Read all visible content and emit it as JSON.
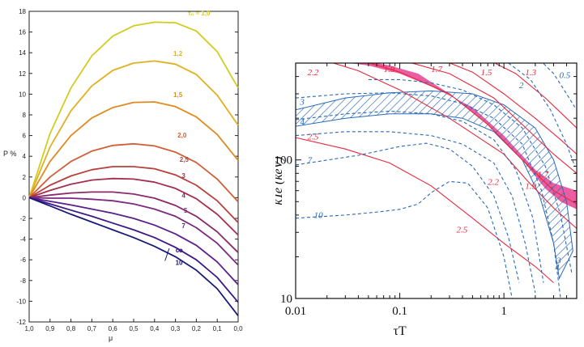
{
  "chart_data": [
    {
      "type": "line",
      "title": "",
      "xlabel": "μ",
      "ylabel": "P %",
      "xlim": [
        1.0,
        0.0
      ],
      "ylim": [
        -12,
        18
      ],
      "x_ticks": [
        "1,0",
        "0,9",
        "0,8",
        "0,7",
        "0,6",
        "0,5",
        "0,4",
        "0,3",
        "0,2",
        "0,1",
        "0,0"
      ],
      "y_ticks": [
        "18",
        "16",
        "14",
        "12",
        "10",
        "8",
        "6",
        "4",
        "2",
        "0",
        "-2",
        "-4",
        "-6",
        "-8",
        "-10",
        "-12"
      ],
      "x": [
        1.0,
        0.9,
        0.8,
        0.7,
        0.6,
        0.5,
        0.4,
        0.3,
        0.2,
        0.1,
        0.0
      ],
      "series": [
        {
          "name": "τ₀ = 1,0",
          "color": "#d2cc1e",
          "values": [
            0,
            6.2,
            10.6,
            13.7,
            15.6,
            16.6,
            16.95,
            16.9,
            16.1,
            14.1,
            10.6
          ]
        },
        {
          "name": "1,2",
          "color": "#e0b020",
          "values": [
            0,
            4.9,
            8.4,
            10.8,
            12.3,
            13.0,
            13.2,
            12.9,
            11.9,
            9.9,
            7.0
          ]
        },
        {
          "name": "1,5",
          "color": "#e08a1e",
          "values": [
            0,
            3.5,
            6.0,
            7.7,
            8.7,
            9.2,
            9.25,
            8.8,
            7.8,
            6.1,
            3.6
          ]
        },
        {
          "name": "2,0",
          "color": "#cf6038",
          "values": [
            0,
            2.0,
            3.5,
            4.5,
            5.05,
            5.2,
            5.0,
            4.4,
            3.4,
            1.8,
            -0.4
          ]
        },
        {
          "name": "2,5",
          "color": "#b8403c",
          "values": [
            0,
            1.2,
            2.1,
            2.7,
            3.0,
            3.0,
            2.8,
            2.2,
            1.2,
            -0.3,
            -2.4
          ]
        },
        {
          "name": "3",
          "color": "#a42e4e",
          "values": [
            0,
            0.7,
            1.3,
            1.7,
            1.85,
            1.8,
            1.5,
            0.9,
            -0.1,
            -1.6,
            -3.6
          ]
        },
        {
          "name": "4",
          "color": "#8a2a6a",
          "values": [
            0,
            0.25,
            0.45,
            0.55,
            0.55,
            0.35,
            -0.05,
            -0.75,
            -1.8,
            -3.3,
            -5.3
          ]
        },
        {
          "name": "5",
          "color": "#7a2a80",
          "values": [
            0,
            -0.05,
            -0.05,
            -0.15,
            -0.3,
            -0.6,
            -1.1,
            -1.8,
            -2.9,
            -4.4,
            -6.5
          ]
        },
        {
          "name": "7",
          "color": "#5a1f8a",
          "values": [
            0,
            -0.35,
            -0.7,
            -1.1,
            -1.5,
            -2.0,
            -2.65,
            -3.5,
            -4.6,
            -6.2,
            -8.4
          ]
        },
        {
          "name": "∞",
          "color": "#3a1a86",
          "values": [
            0,
            -0.6,
            -1.2,
            -1.8,
            -2.45,
            -3.1,
            -3.85,
            -4.8,
            -6.0,
            -7.7,
            -10.1
          ]
        },
        {
          "name": "10",
          "color": "#1a1a78",
          "values": [
            0,
            -0.8,
            -1.6,
            -2.35,
            -3.1,
            -3.85,
            -4.7,
            -5.7,
            -7.0,
            -8.8,
            -11.4
          ]
        }
      ]
    },
    {
      "type": "line",
      "title": "",
      "xlabel": "τT",
      "ylabel": "kTe (keV)",
      "xscale": "log",
      "yscale": "log",
      "xlim": [
        0.01,
        5
      ],
      "ylim": [
        10,
        500
      ],
      "x_ticks": [
        "0.01",
        "0.1",
        "1"
      ],
      "y_ticks": [
        "10",
        "100"
      ],
      "series": [
        {
          "name": "2.2",
          "style": "solid",
          "color": "#e8283c",
          "points": [
            [
              0.018,
              530
            ],
            [
              0.04,
              440
            ],
            [
              0.1,
              320
            ],
            [
              0.3,
              200
            ],
            [
              1,
              110
            ],
            [
              1.7,
              70
            ],
            [
              3,
              45
            ],
            [
              5,
              32
            ]
          ]
        },
        {
          "name": "2.5",
          "style": "solid",
          "color": "#e8283c",
          "points": [
            [
              0.01,
              145
            ],
            [
              0.03,
              120
            ],
            [
              0.08,
              95
            ],
            [
              0.2,
              65
            ],
            [
              0.5,
              38
            ],
            [
              1,
              25
            ],
            [
              2,
              17
            ],
            [
              3,
              13
            ]
          ]
        },
        {
          "name": "1.9",
          "style": "solid",
          "color": "#e8283c",
          "points": [
            [
              0.04,
              530
            ],
            [
              0.1,
              430
            ],
            [
              0.3,
              300
            ],
            [
              0.7,
              180
            ],
            [
              1.5,
              100
            ],
            [
              3,
              60
            ],
            [
              5,
              48
            ]
          ]
        },
        {
          "name": "1.7",
          "style": "solid",
          "color": "#e8283c",
          "points": [
            [
              0.1,
              530
            ],
            [
              0.3,
              420
            ],
            [
              0.8,
              280
            ],
            [
              1.5,
              180
            ],
            [
              3,
              110
            ],
            [
              5,
              80
            ]
          ]
        },
        {
          "name": "1.5",
          "style": "solid",
          "color": "#e8283c",
          "points": [
            [
              0.25,
              530
            ],
            [
              0.5,
              430
            ],
            [
              1,
              300
            ],
            [
              2,
              200
            ],
            [
              3.5,
              140
            ],
            [
              5,
              110
            ]
          ]
        },
        {
          "name": "1.3",
          "style": "solid",
          "color": "#e8283c",
          "points": [
            [
              0.7,
              530
            ],
            [
              1.3,
              420
            ],
            [
              2.5,
              280
            ],
            [
              4,
              200
            ],
            [
              5,
              170
            ]
          ]
        },
        {
          "name": "0.5",
          "style": "dashed",
          "color": "#2a6ab8",
          "points": [
            [
              2.2,
              530
            ],
            [
              3,
              420
            ],
            [
              4,
              300
            ],
            [
              4.8,
              240
            ]
          ]
        },
        {
          "name": "1",
          "style": "dashed",
          "color": "#2a6ab8",
          "points": [
            [
              1.0,
              530
            ],
            [
              1.8,
              380
            ],
            [
              2.8,
              230
            ],
            [
              4,
              130
            ],
            [
              4.8,
              90
            ]
          ]
        },
        {
          "name": "2",
          "style": "dashed",
          "color": "#2a6ab8",
          "points": [
            [
              0.05,
              380
            ],
            [
              0.1,
              380
            ],
            [
              0.2,
              360
            ],
            [
              0.4,
              320
            ],
            [
              0.8,
              250
            ],
            [
              1.5,
              170
            ],
            [
              2.5,
              90
            ],
            [
              3.5,
              40
            ],
            [
              4.5,
              15
            ]
          ]
        },
        {
          "name": "3",
          "style": "dashed",
          "color": "#2a6ab8",
          "points": [
            [
              0.01,
              280
            ],
            [
              0.03,
              300
            ],
            [
              0.08,
              305
            ],
            [
              0.2,
              290
            ],
            [
              0.4,
              255
            ],
            [
              0.8,
              200
            ],
            [
              1.5,
              130
            ],
            [
              2.3,
              60
            ],
            [
              3,
              25
            ],
            [
              3.5,
              10
            ]
          ]
        },
        {
          "name": "4",
          "style": "dashed",
          "color": "#2a6ab8",
          "points": [
            [
              0.01,
              195
            ],
            [
              0.03,
              215
            ],
            [
              0.08,
              225
            ],
            [
              0.2,
              215
            ],
            [
              0.4,
              190
            ],
            [
              0.8,
              140
            ],
            [
              1.3,
              85
            ],
            [
              1.9,
              38
            ],
            [
              2.4,
              13
            ]
          ]
        },
        {
          "name": "5",
          "style": "dashed",
          "color": "#2a6ab8",
          "points": [
            [
              0.01,
              150
            ],
            [
              0.03,
              160
            ],
            [
              0.08,
              160
            ],
            [
              0.2,
              150
            ],
            [
              0.4,
              130
            ],
            [
              0.8,
              95
            ],
            [
              1.2,
              55
            ],
            [
              1.6,
              25
            ],
            [
              2,
              11
            ]
          ]
        },
        {
          "name": "7",
          "style": "dashed",
          "color": "#2a6ab8",
          "points": [
            [
              0.01,
              92
            ],
            [
              0.04,
              108
            ],
            [
              0.1,
              125
            ],
            [
              0.18,
              132
            ],
            [
              0.3,
              120
            ],
            [
              0.5,
              90
            ],
            [
              0.8,
              55
            ],
            [
              1.1,
              28
            ],
            [
              1.4,
              13
            ]
          ]
        },
        {
          "name": "10",
          "style": "dashed",
          "color": "#2a6ab8",
          "points": [
            [
              0.01,
              38
            ],
            [
              0.03,
              40
            ],
            [
              0.06,
              42
            ],
            [
              0.1,
              44
            ],
            [
              0.15,
              48
            ],
            [
              0.2,
              58
            ],
            [
              0.3,
              70
            ],
            [
              0.45,
              68
            ],
            [
              0.7,
              45
            ],
            [
              1,
              20
            ],
            [
              1.2,
              10
            ]
          ]
        }
      ],
      "bands": [
        {
          "name": "pink-band",
          "color": "#e8418f",
          "top": [
            [
              0.018,
              530
            ],
            [
              0.05,
              480
            ],
            [
              0.1,
              420
            ],
            [
              0.2,
              340
            ],
            [
              0.5,
              240
            ],
            [
              1,
              150
            ],
            [
              2,
              85
            ],
            [
              3,
              68
            ],
            [
              5,
              60
            ]
          ],
          "bottom": [
            [
              0.04,
              530
            ],
            [
              0.08,
              480
            ],
            [
              0.15,
              420
            ],
            [
              0.3,
              300
            ],
            [
              0.7,
              180
            ],
            [
              1.5,
              100
            ],
            [
              2.5,
              62
            ],
            [
              3.5,
              50
            ],
            [
              5,
              44
            ]
          ]
        },
        {
          "name": "hatched-band",
          "color": "#2a6ab8",
          "top": [
            [
              0.01,
              230
            ],
            [
              0.03,
              280
            ],
            [
              0.08,
              305
            ],
            [
              0.2,
              315
            ],
            [
              0.5,
              300
            ],
            [
              1,
              250
            ],
            [
              2,
              170
            ],
            [
              3,
              100
            ],
            [
              4,
              50
            ],
            [
              4.6,
              22
            ]
          ],
          "bottom": [
            [
              0.01,
              175
            ],
            [
              0.03,
              200
            ],
            [
              0.08,
              215
            ],
            [
              0.2,
              215
            ],
            [
              0.4,
              200
            ],
            [
              0.8,
              160
            ],
            [
              1.5,
              100
            ],
            [
              2.2,
              55
            ],
            [
              3,
              25
            ],
            [
              3.4,
              14
            ]
          ]
        }
      ],
      "labels": [
        {
          "text": "2.2",
          "color": "#e8283c",
          "at": [
            0.013,
            410
          ]
        },
        {
          "text": "2.5",
          "color": "#e8283c",
          "at": [
            0.013,
            140
          ]
        },
        {
          "text": "1.9",
          "color": "#e8283c",
          "at": [
            0.07,
            430
          ]
        },
        {
          "text": "1.7",
          "color": "#e8283c",
          "at": [
            0.2,
            430
          ]
        },
        {
          "text": "1.5",
          "color": "#e8283c",
          "at": [
            0.6,
            410
          ]
        },
        {
          "text": "1.3",
          "color": "#e8283c",
          "at": [
            1.6,
            410
          ]
        },
        {
          "text": "0.5",
          "color": "#2a6ab8",
          "at": [
            3.4,
            390
          ]
        },
        {
          "text": "2",
          "color": "#2a6ab8",
          "at": [
            1.4,
            330
          ]
        },
        {
          "text": "3",
          "color": "#2a6ab8",
          "at": [
            0.011,
            250
          ]
        },
        {
          "text": "4",
          "color": "#2a6ab8",
          "at": [
            0.011,
            180
          ]
        },
        {
          "text": "7",
          "color": "#2a6ab8",
          "at": [
            0.013,
            95
          ]
        },
        {
          "text": "10",
          "color": "#2a6ab8",
          "at": [
            0.015,
            38
          ]
        },
        {
          "text": "2.2",
          "color": "#e8283c",
          "at": [
            0.7,
            66
          ]
        },
        {
          "text": "2.5",
          "color": "#e8283c",
          "at": [
            0.35,
            30
          ]
        },
        {
          "text": "1.9",
          "color": "#e8283c",
          "at": [
            1.6,
            62
          ]
        },
        {
          "text": "1.7",
          "color": "#e8283c",
          "at": [
            2.1,
            75
          ]
        },
        {
          "text": "3",
          "color": "#2a6ab8",
          "at": [
            3.2,
            18
          ]
        },
        {
          "text": "4",
          "color": "#2a6ab8",
          "at": [
            3.1,
            16
          ]
        }
      ]
    }
  ]
}
